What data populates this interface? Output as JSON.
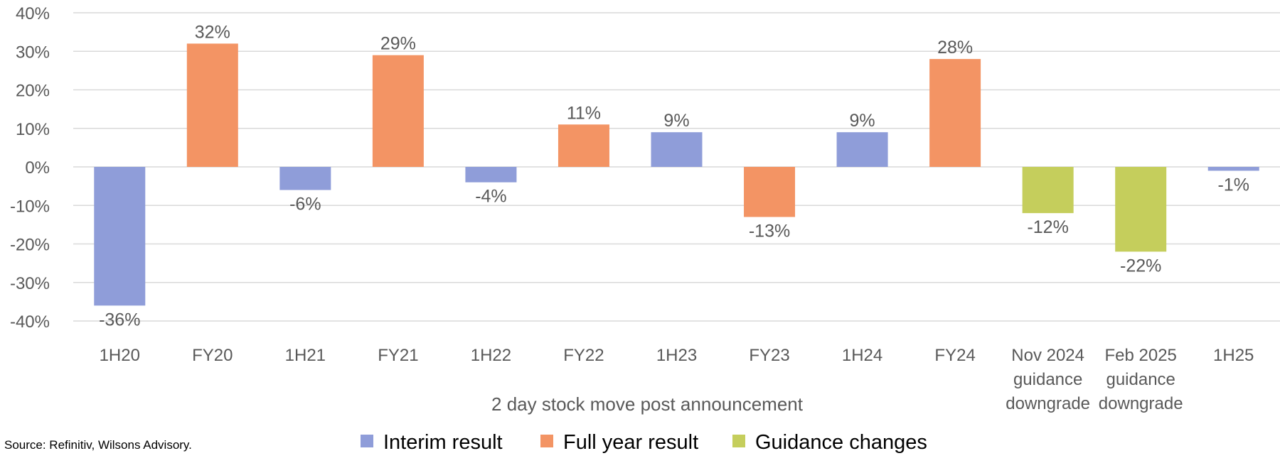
{
  "chart_data": {
    "type": "bar",
    "title": "",
    "xlabel": "2 day stock move post announcement",
    "ylabel": "",
    "ylim": [
      -40,
      40
    ],
    "y_ticks": [
      40,
      30,
      20,
      10,
      0,
      -10,
      -20,
      -30,
      -40
    ],
    "y_tick_labels": [
      "40%",
      "30%",
      "20%",
      "10%",
      "0%",
      "-10%",
      "-20%",
      "-30%",
      "-40%"
    ],
    "grid": true,
    "legend_position": "bottom",
    "series_colors": {
      "interim": "#8f9dd9",
      "full_year": "#f39464",
      "guidance": "#c5ce5c"
    },
    "legend": [
      {
        "key": "interim",
        "label": "Interim result"
      },
      {
        "key": "full_year",
        "label": "Full year result"
      },
      {
        "key": "guidance",
        "label": "Guidance changes"
      }
    ],
    "categories": [
      {
        "label": [
          "1H20"
        ],
        "value": -36,
        "value_label": "-36%",
        "series": "interim"
      },
      {
        "label": [
          "FY20"
        ],
        "value": 32,
        "value_label": "32%",
        "series": "full_year"
      },
      {
        "label": [
          "1H21"
        ],
        "value": -6,
        "value_label": "-6%",
        "series": "interim"
      },
      {
        "label": [
          "FY21"
        ],
        "value": 29,
        "value_label": "29%",
        "series": "full_year"
      },
      {
        "label": [
          "1H22"
        ],
        "value": -4,
        "value_label": "-4%",
        "series": "interim"
      },
      {
        "label": [
          "FY22"
        ],
        "value": 11,
        "value_label": "11%",
        "series": "full_year"
      },
      {
        "label": [
          "1H23"
        ],
        "value": 9,
        "value_label": "9%",
        "series": "interim"
      },
      {
        "label": [
          "FY23"
        ],
        "value": -13,
        "value_label": "-13%",
        "series": "full_year"
      },
      {
        "label": [
          "1H24"
        ],
        "value": 9,
        "value_label": "9%",
        "series": "interim"
      },
      {
        "label": [
          "FY24"
        ],
        "value": 28,
        "value_label": "28%",
        "series": "full_year"
      },
      {
        "label": [
          "Nov 2024",
          "guidance",
          "downgrade"
        ],
        "value": -12,
        "value_label": "-12%",
        "series": "guidance"
      },
      {
        "label": [
          "Feb 2025",
          "guidance",
          "downgrade"
        ],
        "value": -22,
        "value_label": "-22%",
        "series": "guidance"
      },
      {
        "label": [
          "1H25"
        ],
        "value": -1,
        "value_label": "-1%",
        "series": "interim"
      }
    ]
  },
  "source_note": "Source: Refinitiv, Wilsons Advisory."
}
